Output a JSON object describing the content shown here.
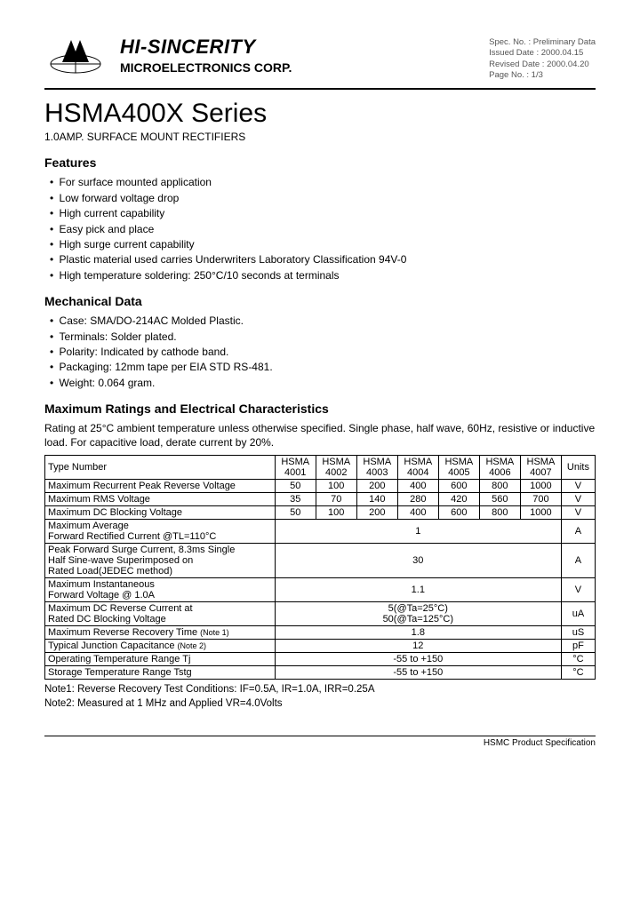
{
  "header": {
    "company_name": "HI-SINCERITY",
    "company_sub": "MICROELECTRONICS CORP.",
    "spec": {
      "spec_no_label": "Spec. No. : Preliminary Data",
      "issued_label": "Issued Date : 2000.04.15",
      "revised_label": "Revised Date : 2000.04.20",
      "page_label": "Page No. : 1/3"
    }
  },
  "title": "HSMA400X Series",
  "subtitle": "1.0AMP. SURFACE MOUNT RECTIFIERS",
  "features": {
    "heading": "Features",
    "items": [
      "For surface mounted application",
      "Low forward voltage drop",
      "High current capability",
      "Easy pick and place",
      "High surge current capability",
      "Plastic material used carries Underwriters Laboratory Classification 94V-0",
      "High temperature soldering: 250°C/10 seconds at terminals"
    ]
  },
  "mechanical": {
    "heading": "Mechanical Data",
    "items": [
      "Case: SMA/DO-214AC Molded Plastic.",
      "Terminals: Solder plated.",
      "Polarity: Indicated by cathode band.",
      "Packaging: 12mm tape per EIA STD RS-481.",
      "Weight: 0.064 gram."
    ]
  },
  "ratings": {
    "heading": "Maximum Ratings and Electrical Characteristics",
    "intro": "Rating at 25°C ambient temperature unless otherwise specified. Single phase, half wave, 60Hz, resistive or inductive load. For capacitive load, derate current by 20%.",
    "type_label": "Type Number",
    "units_label": "Units",
    "parts": [
      "HSMA 4001",
      "HSMA 4002",
      "HSMA 4003",
      "HSMA 4004",
      "HSMA 4005",
      "HSMA 4006",
      "HSMA 4007"
    ],
    "rows": [
      {
        "param": "Maximum Recurrent Peak Reverse Voltage",
        "vals": [
          "50",
          "100",
          "200",
          "400",
          "600",
          "800",
          "1000"
        ],
        "unit": "V"
      },
      {
        "param": "Maximum RMS Voltage",
        "vals": [
          "35",
          "70",
          "140",
          "280",
          "420",
          "560",
          "700"
        ],
        "unit": "V"
      },
      {
        "param": "Maximum DC Blocking Voltage",
        "vals": [
          "50",
          "100",
          "200",
          "400",
          "600",
          "800",
          "1000"
        ],
        "unit": "V"
      }
    ],
    "merged_rows": [
      {
        "param": "Maximum Average\nForward Rectified Current @TL=110°C",
        "val": "1",
        "unit": "A"
      },
      {
        "param": "Peak Forward Surge Current, 8.3ms Single\nHalf Sine-wave Superimposed on\nRated Load(JEDEC method)",
        "val": "30",
        "unit": "A"
      },
      {
        "param": "Maximum Instantaneous\nForward Voltage @ 1.0A",
        "val": "1.1",
        "unit": "V"
      },
      {
        "param": "Maximum DC Reverse Current at\nRated DC Blocking Voltage",
        "val": "5(@Ta=25°C)\n50(@Ta=125°C)",
        "unit": "uA"
      },
      {
        "param": "Maximum Reverse Recovery Time (Note 1)",
        "val": "1.8",
        "unit": "uS"
      },
      {
        "param": "Typical Junction Capacitance (Note 2)",
        "val": "12",
        "unit": "pF"
      },
      {
        "param": "Operating Temperature Range Tj",
        "val": "-55 to +150",
        "unit": "°C"
      },
      {
        "param": "Storage Temperature Range Tstg",
        "val": "-55 to +150",
        "unit": "°C"
      }
    ]
  },
  "notes": {
    "n1": "Note1: Reverse Recovery Test Conditions: IF=0.5A, IR=1.0A, IRR=0.25A",
    "n2": "Note2: Measured at 1 MHz and Applied VR=4.0Volts"
  },
  "footer": "HSMC Product Specification"
}
